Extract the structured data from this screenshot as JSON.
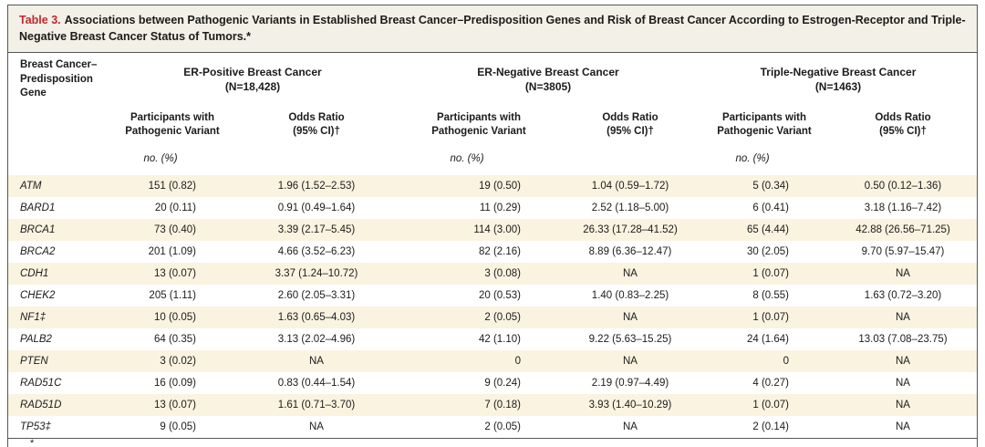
{
  "title": {
    "label": "Table 3.",
    "text": "Associations between Pathogenic Variants in Established Breast Cancer–Predisposition Genes and Risk of Breast Cancer According to Estrogen-Receptor and Triple-Negative Breast Cancer Status of Tumors.*"
  },
  "table": {
    "gene_header": "Breast Cancer–\nPredisposition\nGene",
    "groups": [
      {
        "name": "ER-Positive Breast Cancer",
        "n": "(N=18,428)"
      },
      {
        "name": "ER-Negative Breast Cancer",
        "n": "(N=3805)"
      },
      {
        "name": "Triple-Negative Breast Cancer",
        "n": "(N=1463)"
      }
    ],
    "subheaders": {
      "participants": "Participants with\nPathogenic Variant",
      "odds": "Odds Ratio\n(95% CI)†"
    },
    "unit_label": "no. (%)",
    "rows": [
      {
        "gene": "ATM",
        "cells": [
          "151 (0.82)",
          "1.96 (1.52–2.53)",
          "19 (0.50)",
          "1.04 (0.59–1.72)",
          "5 (0.34)",
          "0.50 (0.12–1.36)"
        ]
      },
      {
        "gene": "BARD1",
        "cells": [
          "20 (0.11)",
          "0.91 (0.49–1.64)",
          "11 (0.29)",
          "2.52 (1.18–5.00)",
          "6 (0.41)",
          "3.18 (1.16–7.42)"
        ]
      },
      {
        "gene": "BRCA1",
        "cells": [
          "73 (0.40)",
          "3.39 (2.17–5.45)",
          "114 (3.00)",
          "26.33 (17.28–41.52)",
          "65 (4.44)",
          "42.88 (26.56–71.25)"
        ]
      },
      {
        "gene": "BRCA2",
        "cells": [
          "201 (1.09)",
          "4.66 (3.52–6.23)",
          "82 (2.16)",
          "8.89 (6.36–12.47)",
          "30 (2.05)",
          "9.70 (5.97–15.47)"
        ]
      },
      {
        "gene": "CDH1",
        "cells": [
          "13 (0.07)",
          "3.37 (1.24–10.72)",
          "3 (0.08)",
          "NA",
          "1 (0.07)",
          "NA"
        ]
      },
      {
        "gene": "CHEK2",
        "cells": [
          "205 (1.11)",
          "2.60 (2.05–3.31)",
          "20 (0.53)",
          "1.40 (0.83–2.25)",
          "8 (0.55)",
          "1.63 (0.72–3.20)"
        ]
      },
      {
        "gene": "NF1‡",
        "cells": [
          "10 (0.05)",
          "1.63 (0.65–4.03)",
          "2 (0.05)",
          "NA",
          "1 (0.07)",
          "NA"
        ]
      },
      {
        "gene": "PALB2",
        "cells": [
          "64 (0.35)",
          "3.13 (2.02–4.96)",
          "42 (1.10)",
          "9.22 (5.63–15.25)",
          "24 (1.64)",
          "13.03 (7.08–23.75)"
        ]
      },
      {
        "gene": "PTEN",
        "cells": [
          "3 (0.02)",
          "NA",
          "0",
          "NA",
          "0",
          "NA"
        ]
      },
      {
        "gene": "RAD51C",
        "cells": [
          "16 (0.09)",
          "0.83 (0.44–1.54)",
          "9 (0.24)",
          "2.19 (0.97–4.49)",
          "4 (0.27)",
          "NA"
        ]
      },
      {
        "gene": "RAD51D",
        "cells": [
          "13 (0.07)",
          "1.61 (0.71–3.70)",
          "7 (0.18)",
          "3.93 (1.40–10.29)",
          "1 (0.07)",
          "NA"
        ]
      },
      {
        "gene": "TP53‡",
        "cells": [
          "9 (0.05)",
          "NA",
          "2 (0.05)",
          "NA",
          "2 (0.14)",
          "NA"
        ]
      }
    ]
  },
  "footnote_partial": "*",
  "colors": {
    "title_label_red": "#c1272d",
    "title_bar_bg": "#f3f0e7",
    "stripe_bg": "#faf3e0",
    "border": "#55565a"
  }
}
